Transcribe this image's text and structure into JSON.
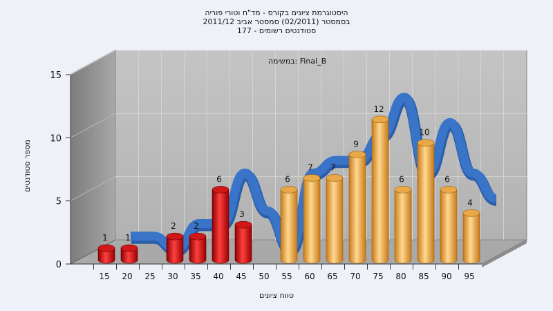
{
  "chart_data": {
    "type": "bar",
    "title_lines": [
      "היסטוגרמת ציונים בקורס - מד\"ח וטורי פוריה",
      "בסמסטר  (02/2011)  סמסטר אביב 2011/12",
      "סטודנטים רשומים - 177"
    ],
    "legend_label": "Final_B :במשימה",
    "xlabel": "טווח ציונים",
    "ylabel": "מספר סטודנטים",
    "categories": [
      "15",
      "20",
      "25",
      "30",
      "35",
      "40",
      "45",
      "50",
      "55",
      "60",
      "65",
      "70",
      "75",
      "80",
      "85",
      "90",
      "95"
    ],
    "x_tick_labels": [
      "15",
      "20",
      "25",
      "30",
      "35",
      "40",
      "45",
      "50",
      "55",
      "60",
      "65",
      "70",
      "75",
      "80",
      "85",
      "90",
      "95"
    ],
    "values": [
      1,
      1,
      0,
      2,
      2,
      6,
      3,
      0,
      6,
      7,
      7,
      9,
      12,
      6,
      10,
      6,
      4
    ],
    "y_ticks": [
      "0",
      "5",
      "10",
      "15"
    ],
    "ylim": [
      0,
      15
    ],
    "fail_threshold": 55,
    "colors": {
      "fail": "#e01010",
      "pass": "#f0a030",
      "trend": "#3a74c8",
      "back_wall": "#bcbcbc",
      "side_wall": "#9a9a9a"
    }
  }
}
